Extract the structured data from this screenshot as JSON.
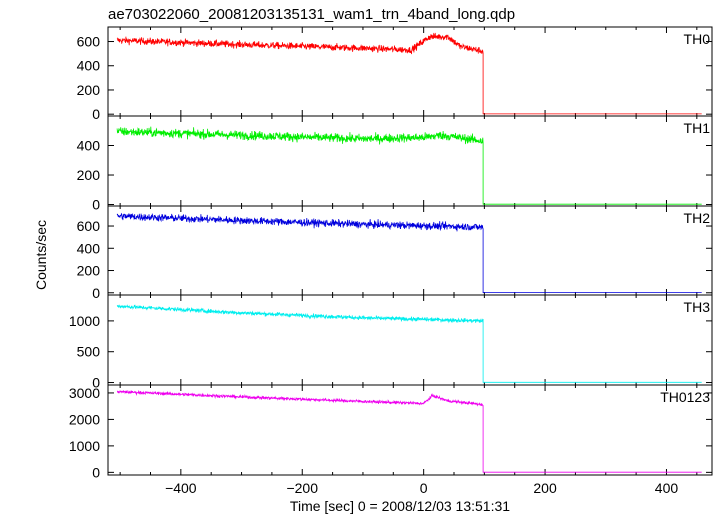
{
  "title": "ae703022060_20081203135131_wam1_trn_4band_long.qdp",
  "chart_data": {
    "type": "line",
    "title": "ae703022060_20081203135131_wam1_trn_4band_long.qdp",
    "xlabel": "Time [sec] 0 = 2008/12/03 13:51:31",
    "ylabel": "Counts/sec",
    "xlim": [
      -520,
      475
    ],
    "x_ticks": [
      -400,
      -200,
      0,
      200,
      400
    ],
    "x_tick_labels": [
      "−400",
      "−200",
      "0",
      "200",
      "400"
    ],
    "data_x_range": [
      -505,
      458
    ],
    "drop_time": 98,
    "grid": false,
    "panels": [
      {
        "name": "TH0",
        "color": "#ff0000",
        "ylim": [
          -15,
          720
        ],
        "y_ticks": [
          0,
          200,
          400,
          600
        ],
        "y_tick_labels": [
          "0",
          "200",
          "400",
          "600"
        ],
        "trend": [
          [
            -505,
            610
          ],
          [
            -300,
            575
          ],
          [
            -100,
            545
          ],
          [
            -20,
            530
          ],
          [
            10,
            640
          ],
          [
            40,
            640
          ],
          [
            60,
            560
          ],
          [
            98,
            520
          ]
        ],
        "noise": 28,
        "after_drop": 2
      },
      {
        "name": "TH1",
        "color": "#00ee00",
        "ylim": [
          -10,
          600
        ],
        "y_ticks": [
          0,
          200,
          400
        ],
        "y_tick_labels": [
          "0",
          "200",
          "400"
        ],
        "trend": [
          [
            -505,
            495
          ],
          [
            -300,
            470
          ],
          [
            -100,
            445
          ],
          [
            0,
            455
          ],
          [
            30,
            470
          ],
          [
            98,
            430
          ]
        ],
        "noise": 30,
        "after_drop": 2
      },
      {
        "name": "TH2",
        "color": "#0000dd",
        "ylim": [
          -20,
          780
        ],
        "y_ticks": [
          0,
          200,
          400,
          600
        ],
        "y_tick_labels": [
          "0",
          "200",
          "400",
          "600"
        ],
        "trend": [
          [
            -505,
            690
          ],
          [
            -300,
            650
          ],
          [
            -100,
            615
          ],
          [
            98,
            590
          ]
        ],
        "noise": 33,
        "after_drop": 2
      },
      {
        "name": "TH3",
        "color": "#00eeee",
        "ylim": [
          -40,
          1420
        ],
        "y_ticks": [
          0,
          500,
          1000
        ],
        "y_tick_labels": [
          "0",
          "500",
          "1000"
        ],
        "trend": [
          [
            -505,
            1240
          ],
          [
            -300,
            1130
          ],
          [
            -100,
            1050
          ],
          [
            98,
            1000
          ]
        ],
        "noise": 32,
        "after_drop": 3
      },
      {
        "name": "TH0123",
        "color": "#ee00ee",
        "ylim": [
          -100,
          3300
        ],
        "y_ticks": [
          0,
          1000,
          2000,
          3000
        ],
        "y_tick_labels": [
          "0",
          "1000",
          "2000",
          "3000"
        ],
        "trend": [
          [
            -505,
            3050
          ],
          [
            -300,
            2850
          ],
          [
            -100,
            2680
          ],
          [
            0,
            2600
          ],
          [
            15,
            2900
          ],
          [
            40,
            2700
          ],
          [
            98,
            2560
          ]
        ],
        "noise": 55,
        "after_drop": 5
      }
    ]
  }
}
